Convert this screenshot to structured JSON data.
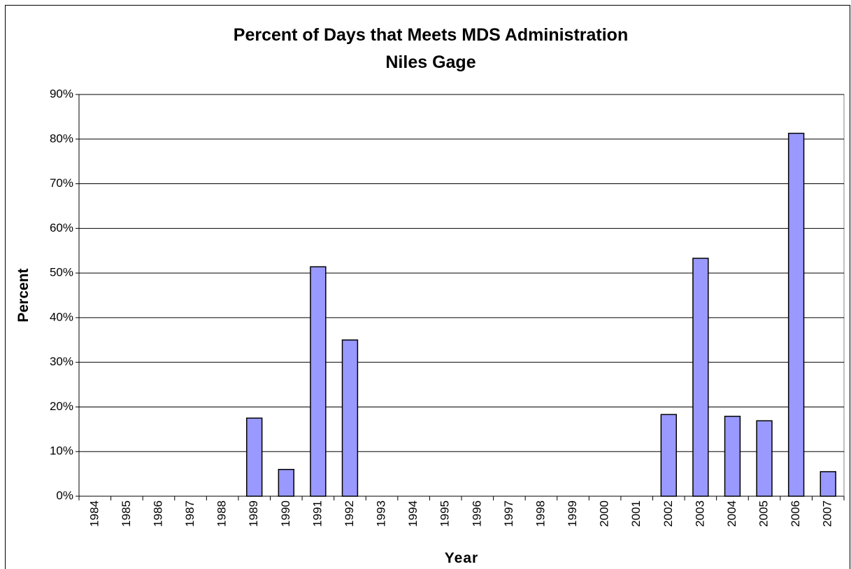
{
  "chart_data": {
    "type": "bar",
    "title": "Percent of Days that Meets MDS Administration",
    "subtitle": "Niles Gage",
    "x_label": "Year",
    "y_label": "Percent",
    "categories": [
      "1984",
      "1985",
      "1986",
      "1987",
      "1988",
      "1989",
      "1990",
      "1991",
      "1992",
      "1993",
      "1994",
      "1995",
      "1996",
      "1997",
      "1998",
      "1999",
      "2000",
      "2001",
      "2002",
      "2003",
      "2004",
      "2005",
      "2006",
      "2007"
    ],
    "values": [
      0,
      0,
      0,
      0,
      0,
      17.5,
      6,
      51.4,
      35,
      0,
      0,
      0,
      0,
      0,
      0,
      0,
      0,
      0,
      18.3,
      53.3,
      17.9,
      16.9,
      81.3,
      5.5
    ],
    "color": "#9999ff",
    "ylim": [
      0,
      90
    ],
    "yticks": [
      {
        "value": 0,
        "label": "0%"
      },
      {
        "value": 10,
        "label": "10%"
      },
      {
        "value": 20,
        "label": "20%"
      },
      {
        "value": 30,
        "label": "30%"
      },
      {
        "value": 40,
        "label": "40%"
      },
      {
        "value": 50,
        "label": "50%"
      },
      {
        "value": 60,
        "label": "60%"
      },
      {
        "value": 70,
        "label": "70%"
      },
      {
        "value": 80,
        "label": "80%"
      },
      {
        "value": 90,
        "label": "90%"
      }
    ],
    "grid": true
  }
}
